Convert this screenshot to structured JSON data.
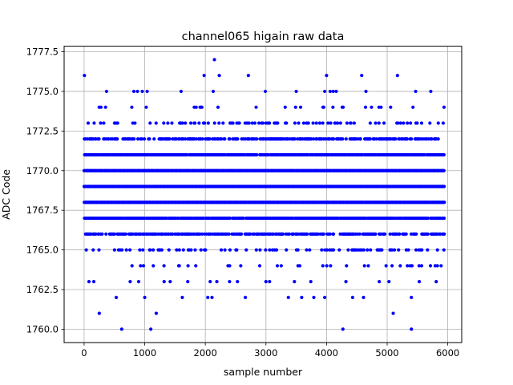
{
  "chart_data": {
    "type": "scatter",
    "title": "channel065 higain raw data",
    "xlabel": "sample number",
    "ylabel": "ADC Code",
    "xlim": [
      -330,
      6230
    ],
    "ylim": [
      1759.15,
      1777.85
    ],
    "x_ticks": [
      0,
      1000,
      2000,
      3000,
      4000,
      5000,
      6000
    ],
    "x_tick_labels": [
      "0",
      "1000",
      "2000",
      "3000",
      "4000",
      "5000",
      "6000"
    ],
    "y_ticks": [
      1760.0,
      1762.5,
      1765.0,
      1767.5,
      1770.0,
      1772.5,
      1775.0,
      1777.5
    ],
    "y_tick_labels": [
      "1760.0",
      "1762.5",
      "1765.0",
      "1767.5",
      "1770.0",
      "1772.5",
      "1775.0",
      "1777.5"
    ],
    "grid": true,
    "legend": "none",
    "marker_color": "#0000ff",
    "x_count": 5936,
    "dense_levels": [
      1764,
      1765,
      1766,
      1767,
      1768,
      1769,
      1770,
      1771,
      1772,
      1773,
      1774
    ],
    "sparse_points": [
      {
        "x": 5,
        "y": 1776
      },
      {
        "x": 2150,
        "y": 1777
      },
      {
        "x": 1980,
        "y": 1776
      },
      {
        "x": 2230,
        "y": 1776
      },
      {
        "x": 2710,
        "y": 1776
      },
      {
        "x": 4000,
        "y": 1776
      },
      {
        "x": 4580,
        "y": 1776
      },
      {
        "x": 5170,
        "y": 1776
      },
      {
        "x": 370,
        "y": 1775
      },
      {
        "x": 820,
        "y": 1775
      },
      {
        "x": 880,
        "y": 1775
      },
      {
        "x": 960,
        "y": 1775
      },
      {
        "x": 1040,
        "y": 1775
      },
      {
        "x": 1600,
        "y": 1775
      },
      {
        "x": 2130,
        "y": 1775
      },
      {
        "x": 2990,
        "y": 1775
      },
      {
        "x": 3500,
        "y": 1775
      },
      {
        "x": 3970,
        "y": 1775
      },
      {
        "x": 4060,
        "y": 1775
      },
      {
        "x": 4110,
        "y": 1775
      },
      {
        "x": 4160,
        "y": 1775
      },
      {
        "x": 4650,
        "y": 1775
      },
      {
        "x": 5470,
        "y": 1775
      },
      {
        "x": 5720,
        "y": 1775
      },
      {
        "x": 80,
        "y": 1763
      },
      {
        "x": 160,
        "y": 1763
      },
      {
        "x": 760,
        "y": 1763
      },
      {
        "x": 900,
        "y": 1763
      },
      {
        "x": 1320,
        "y": 1763
      },
      {
        "x": 1420,
        "y": 1763
      },
      {
        "x": 1710,
        "y": 1763
      },
      {
        "x": 2080,
        "y": 1763
      },
      {
        "x": 2190,
        "y": 1763
      },
      {
        "x": 2400,
        "y": 1763
      },
      {
        "x": 2530,
        "y": 1763
      },
      {
        "x": 3000,
        "y": 1763
      },
      {
        "x": 3060,
        "y": 1763
      },
      {
        "x": 3470,
        "y": 1763
      },
      {
        "x": 3740,
        "y": 1763
      },
      {
        "x": 4320,
        "y": 1763
      },
      {
        "x": 4870,
        "y": 1763
      },
      {
        "x": 5030,
        "y": 1763
      },
      {
        "x": 5530,
        "y": 1763
      },
      {
        "x": 5810,
        "y": 1763
      },
      {
        "x": 530,
        "y": 1762
      },
      {
        "x": 1000,
        "y": 1762
      },
      {
        "x": 1620,
        "y": 1762
      },
      {
        "x": 2040,
        "y": 1762
      },
      {
        "x": 2110,
        "y": 1762
      },
      {
        "x": 2660,
        "y": 1762
      },
      {
        "x": 3370,
        "y": 1762
      },
      {
        "x": 3590,
        "y": 1762
      },
      {
        "x": 3790,
        "y": 1762
      },
      {
        "x": 3970,
        "y": 1762
      },
      {
        "x": 4430,
        "y": 1762
      },
      {
        "x": 4610,
        "y": 1762
      },
      {
        "x": 5400,
        "y": 1762
      },
      {
        "x": 250,
        "y": 1761
      },
      {
        "x": 1190,
        "y": 1761
      },
      {
        "x": 5100,
        "y": 1761
      },
      {
        "x": 620,
        "y": 1760
      },
      {
        "x": 1100,
        "y": 1760
      },
      {
        "x": 4270,
        "y": 1760
      },
      {
        "x": 5400,
        "y": 1760
      }
    ]
  }
}
